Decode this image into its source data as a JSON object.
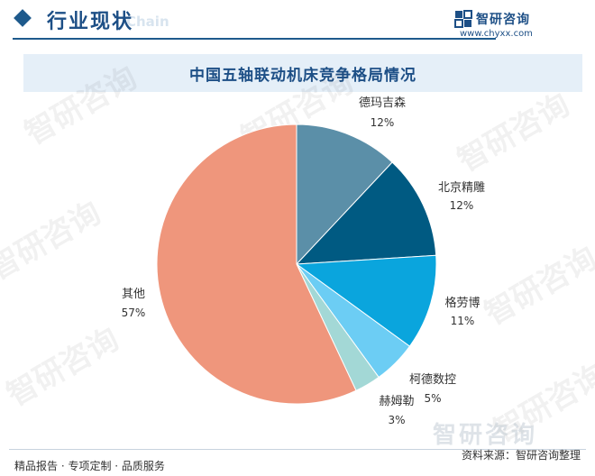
{
  "header": {
    "section_title": "行业现状",
    "section_ghost": "Chain"
  },
  "logo": {
    "name": "智研咨询",
    "url": "www.chyxx.com"
  },
  "watermark_text": "智研咨询",
  "chart_data": {
    "type": "pie",
    "title": "中国五轴联动机床竞争格局情况",
    "unit": "%",
    "slices": [
      {
        "label": "德玛吉森",
        "value": 12,
        "value_label": "12%",
        "color": "#5b8fa8"
      },
      {
        "label": "北京精雕",
        "value": 12,
        "value_label": "12%",
        "color": "#005a82"
      },
      {
        "label": "格劳博",
        "value": 11,
        "value_label": "11%",
        "color": "#0aa5dd"
      },
      {
        "label": "柯德数控",
        "value": 5,
        "value_label": "5%",
        "color": "#6ccdf4"
      },
      {
        "label": "赫姆勒",
        "value": 3,
        "value_label": "3%",
        "color": "#a3d8d6"
      },
      {
        "label": "其他",
        "value": 57,
        "value_label": "57%",
        "color": "#ef967c"
      }
    ]
  },
  "footer": {
    "left": "精品报告 · 专项定制 · 品质服务",
    "right": "资料来源：智研咨询整理",
    "brand": "智研咨询"
  }
}
